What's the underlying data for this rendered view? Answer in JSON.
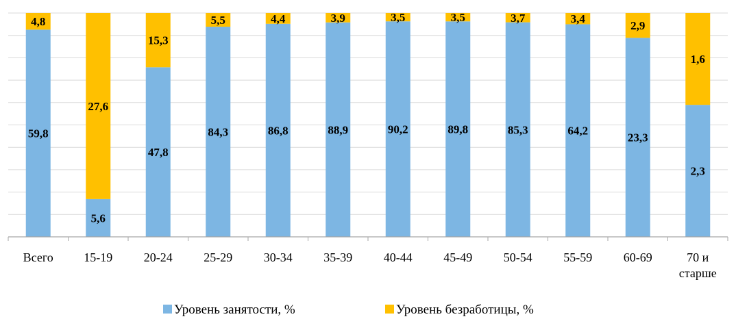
{
  "chart_data": {
    "type": "bar",
    "stacked": true,
    "normalized": true,
    "categories": [
      "Всего",
      "15-19",
      "20-24",
      "25-29",
      "30-34",
      "35-39",
      "40-44",
      "45-49",
      "50-54",
      "55-59",
      "60-69",
      [
        "70 и",
        "старше"
      ]
    ],
    "series": [
      {
        "name": "Уровень занятости, %",
        "color": "#7db6e3",
        "values": [
          59.8,
          5.6,
          47.8,
          84.3,
          86.8,
          88.9,
          90.2,
          89.8,
          85.3,
          64.2,
          23.3,
          2.3
        ],
        "labels": [
          "59,8",
          "5,6",
          "47,8",
          "84,3",
          "86,8",
          "88,9",
          "90,2",
          "89,8",
          "85,3",
          "64,2",
          "23,3",
          "2,3"
        ]
      },
      {
        "name": "Уровень безработицы, %",
        "color": "#ffc000",
        "values": [
          4.8,
          27.6,
          15.3,
          5.5,
          4.4,
          3.9,
          3.5,
          3.5,
          3.7,
          3.4,
          2.9,
          1.6
        ],
        "labels": [
          "4,8",
          "27,6",
          "15,3",
          "5,5",
          "4,4",
          "3,9",
          "3,5",
          "3,5",
          "3,7",
          "3,4",
          "2,9",
          "1,6"
        ]
      }
    ],
    "ylim": [
      0,
      100
    ],
    "grid": true,
    "legend": "bottom"
  }
}
